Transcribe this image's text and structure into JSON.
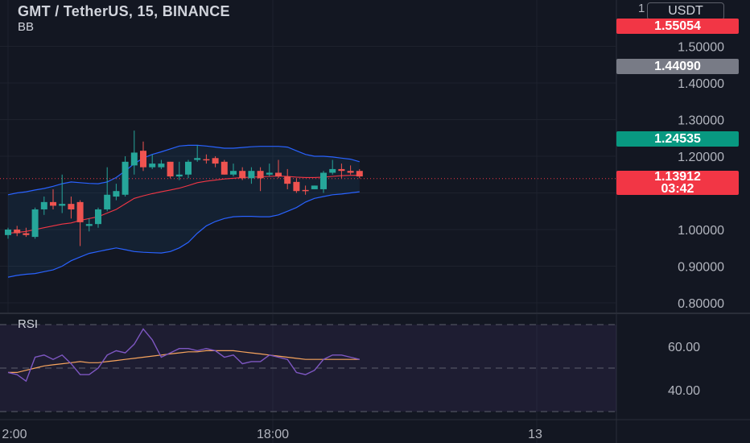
{
  "header": {
    "title": "GMT / TetherUS, 15, BINANCE",
    "indicator": "BB",
    "rsi_label": "RSI",
    "currency": "USDT",
    "top_tick": "1"
  },
  "badges": {
    "high": "1.55054",
    "gray": "1.44090",
    "green": "1.24535",
    "current": "1.13912",
    "countdown": "03:42"
  },
  "colors": {
    "background": "#131722",
    "up": "#26a69a",
    "down": "#ef5350",
    "bb_band": "#2962ff",
    "bb_basis": "#f23645",
    "rsi_line": "#7e57c2",
    "rsi_ma": "#f7a45d",
    "badge_gray": "#787b86"
  },
  "chart_data": [
    {
      "type": "candlestick",
      "title": "GMT / TetherUS, 15, BINANCE",
      "ylim": [
        0.77,
        1.605
      ],
      "y_ticks": [
        "1.50000",
        "1.40000",
        "1.30000",
        "1.20000",
        "1.00000",
        "0.90000",
        "0.80000"
      ],
      "x_ticks": [
        "2:00",
        "18:00",
        "13"
      ],
      "current_price": 1.13912,
      "candles": [
        {
          "o": 0.985,
          "h": 1.005,
          "l": 0.975,
          "c": 1.0
        },
        {
          "o": 1.0,
          "h": 1.01,
          "l": 0.982,
          "c": 0.99
        },
        {
          "o": 0.99,
          "h": 1.005,
          "l": 0.98,
          "c": 0.985
        },
        {
          "o": 0.98,
          "h": 1.06,
          "l": 0.975,
          "c": 1.055
        },
        {
          "o": 1.055,
          "h": 1.09,
          "l": 1.04,
          "c": 1.075
        },
        {
          "o": 1.075,
          "h": 1.11,
          "l": 1.055,
          "c": 1.065
        },
        {
          "o": 1.065,
          "h": 1.15,
          "l": 1.045,
          "c": 1.07
        },
        {
          "o": 1.07,
          "h": 1.09,
          "l": 1.03,
          "c": 1.055
        },
        {
          "o": 1.075,
          "h": 1.08,
          "l": 0.955,
          "c": 1.02
        },
        {
          "o": 1.01,
          "h": 1.03,
          "l": 0.995,
          "c": 1.015
        },
        {
          "o": 1.015,
          "h": 1.06,
          "l": 1.005,
          "c": 1.055
        },
        {
          "o": 1.055,
          "h": 1.17,
          "l": 1.05,
          "c": 1.095
        },
        {
          "o": 1.09,
          "h": 1.125,
          "l": 1.08,
          "c": 1.105
        },
        {
          "o": 1.095,
          "h": 1.2,
          "l": 1.09,
          "c": 1.185
        },
        {
          "o": 1.175,
          "h": 1.27,
          "l": 1.15,
          "c": 1.21
        },
        {
          "o": 1.215,
          "h": 1.24,
          "l": 1.16,
          "c": 1.17
        },
        {
          "o": 1.17,
          "h": 1.205,
          "l": 1.165,
          "c": 1.18
        },
        {
          "o": 1.17,
          "h": 1.19,
          "l": 1.165,
          "c": 1.18
        },
        {
          "o": 1.185,
          "h": 1.185,
          "l": 1.14,
          "c": 1.145
        },
        {
          "o": 1.145,
          "h": 1.185,
          "l": 1.135,
          "c": 1.15
        },
        {
          "o": 1.15,
          "h": 1.19,
          "l": 1.14,
          "c": 1.185
        },
        {
          "o": 1.19,
          "h": 1.23,
          "l": 1.185,
          "c": 1.195
        },
        {
          "o": 1.192,
          "h": 1.205,
          "l": 1.18,
          "c": 1.19
        },
        {
          "o": 1.195,
          "h": 1.2,
          "l": 1.17,
          "c": 1.18
        },
        {
          "o": 1.185,
          "h": 1.19,
          "l": 1.15,
          "c": 1.15
        },
        {
          "o": 1.15,
          "h": 1.18,
          "l": 1.145,
          "c": 1.16
        },
        {
          "o": 1.16,
          "h": 1.17,
          "l": 1.135,
          "c": 1.14
        },
        {
          "o": 1.14,
          "h": 1.17,
          "l": 1.125,
          "c": 1.16
        },
        {
          "o": 1.16,
          "h": 1.17,
          "l": 1.105,
          "c": 1.14
        },
        {
          "o": 1.15,
          "h": 1.18,
          "l": 1.145,
          "c": 1.155
        },
        {
          "o": 1.155,
          "h": 1.19,
          "l": 1.14,
          "c": 1.145
        },
        {
          "o": 1.145,
          "h": 1.165,
          "l": 1.11,
          "c": 1.125
        },
        {
          "o": 1.13,
          "h": 1.14,
          "l": 1.1,
          "c": 1.105
        },
        {
          "o": 1.108,
          "h": 1.12,
          "l": 1.095,
          "c": 1.105
        },
        {
          "o": 1.11,
          "h": 1.12,
          "l": 1.11,
          "c": 1.12
        },
        {
          "o": 1.11,
          "h": 1.16,
          "l": 1.1,
          "c": 1.155
        },
        {
          "o": 1.155,
          "h": 1.19,
          "l": 1.15,
          "c": 1.165
        },
        {
          "o": 1.165,
          "h": 1.18,
          "l": 1.14,
          "c": 1.16
        },
        {
          "o": 1.16,
          "h": 1.175,
          "l": 1.15,
          "c": 1.155
        },
        {
          "o": 1.16,
          "h": 1.165,
          "l": 1.14,
          "c": 1.145
        }
      ],
      "bb_upper": [
        1.095,
        1.1,
        1.103,
        1.108,
        1.112,
        1.118,
        1.125,
        1.13,
        1.128,
        1.126,
        1.125,
        1.13,
        1.142,
        1.16,
        1.18,
        1.195,
        1.205,
        1.212,
        1.22,
        1.228,
        1.23,
        1.23,
        1.228,
        1.225,
        1.222,
        1.222,
        1.224,
        1.226,
        1.227,
        1.227,
        1.227,
        1.225,
        1.215,
        1.205,
        1.2,
        1.2,
        1.198,
        1.195,
        1.192,
        1.185
      ],
      "bb_basis": [
        0.99,
        0.992,
        0.995,
        1.0,
        1.005,
        1.01,
        1.015,
        1.018,
        1.025,
        1.03,
        1.035,
        1.045,
        1.055,
        1.07,
        1.085,
        1.092,
        1.098,
        1.103,
        1.108,
        1.113,
        1.12,
        1.128,
        1.132,
        1.135,
        1.138,
        1.14,
        1.142,
        1.143,
        1.144,
        1.145,
        1.146,
        1.145,
        1.143,
        1.142,
        1.142,
        1.143,
        1.145,
        1.147,
        1.148,
        1.148
      ],
      "bb_lower": [
        0.87,
        0.875,
        0.878,
        0.88,
        0.885,
        0.89,
        0.9,
        0.915,
        0.925,
        0.935,
        0.94,
        0.945,
        0.95,
        0.945,
        0.94,
        0.938,
        0.937,
        0.936,
        0.94,
        0.95,
        0.965,
        0.99,
        1.01,
        1.022,
        1.03,
        1.035,
        1.036,
        1.036,
        1.035,
        1.035,
        1.04,
        1.05,
        1.06,
        1.075,
        1.085,
        1.09,
        1.095,
        1.097,
        1.1,
        1.103
      ]
    },
    {
      "type": "line",
      "title": "RSI",
      "ylim": [
        28,
        72
      ],
      "y_ticks": [
        "60.00",
        "40.00"
      ],
      "band": [
        30,
        70
      ],
      "midline": 50,
      "series": [
        {
          "role": "rsi",
          "values": [
            48,
            47,
            44,
            55,
            56,
            54,
            56,
            52,
            47,
            47,
            50,
            56,
            58,
            57,
            61,
            68,
            63,
            55,
            57,
            59,
            59,
            58,
            59,
            58,
            55,
            56,
            52,
            53,
            53,
            56,
            55,
            54,
            48,
            47,
            49,
            54,
            56,
            56,
            55,
            54
          ]
        },
        {
          "role": "rsi_ma",
          "values": [
            48,
            48,
            49,
            50,
            51,
            51.5,
            52,
            52.5,
            53,
            52.5,
            52.5,
            53,
            53.5,
            54,
            54.5,
            55,
            55.5,
            56,
            56.5,
            57,
            57.5,
            57.5,
            58,
            58,
            58,
            58,
            57.5,
            57,
            56.5,
            56,
            55.5,
            55,
            54.5,
            54,
            54,
            54,
            54,
            54,
            54,
            54
          ]
        }
      ]
    }
  ]
}
